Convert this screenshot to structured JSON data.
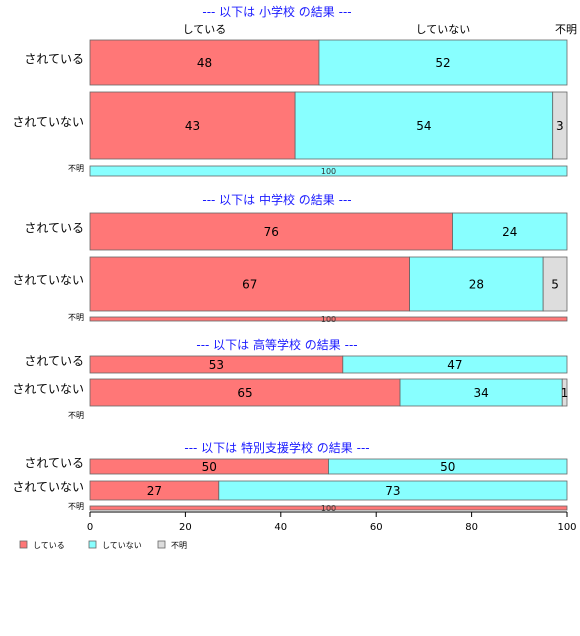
{
  "chart_data": {
    "type": "bar",
    "orientation": "horizontal-stacked-percent",
    "xlim": [
      0,
      100
    ],
    "xticks": [
      "0",
      "20",
      "40",
      "60",
      "80",
      "100"
    ],
    "legend": {
      "position": "bottom-left",
      "entries": [
        "している",
        "していない",
        "不明"
      ]
    },
    "column_headers": [
      "している",
      "していない",
      "不明"
    ],
    "colors": {
      "している": "#ff7777",
      "していない": "#88ffff",
      "不明": "#dddddd"
    },
    "panels": [
      {
        "title": "--- 以下は 小学校 の結果 ---",
        "rows": [
          {
            "label": "されている",
            "values": [
              48,
              52,
              0
            ],
            "labels": [
              "48",
              "52",
              ""
            ]
          },
          {
            "label": "されていない",
            "values": [
              43,
              54,
              3
            ],
            "labels": [
              "43",
              "54",
              "3"
            ]
          },
          {
            "label": "不明",
            "values": [
              0,
              100,
              0
            ],
            "labels": [
              "",
              "100",
              ""
            ]
          }
        ]
      },
      {
        "title": "--- 以下は 中学校 の結果 ---",
        "rows": [
          {
            "label": "されている",
            "values": [
              76,
              24,
              0
            ],
            "labels": [
              "76",
              "24",
              ""
            ]
          },
          {
            "label": "されていない",
            "values": [
              67,
              28,
              5
            ],
            "labels": [
              "67",
              "28",
              "5"
            ]
          },
          {
            "label": "不明",
            "values": [
              100,
              0,
              0
            ],
            "labels": [
              "100",
              "",
              ""
            ]
          }
        ]
      },
      {
        "title": "--- 以下は 高等学校 の結果 ---",
        "rows": [
          {
            "label": "されている",
            "values": [
              53,
              47,
              0
            ],
            "labels": [
              "53",
              "47",
              ""
            ]
          },
          {
            "label": "されていない",
            "values": [
              65,
              34,
              1
            ],
            "labels": [
              "65",
              "34",
              "1"
            ]
          },
          {
            "label": "不明",
            "values": [
              0,
              0,
              0
            ],
            "labels": [
              "",
              "",
              ""
            ]
          }
        ]
      },
      {
        "title": "--- 以下は 特別支援学校 の結果 ---",
        "rows": [
          {
            "label": "されている",
            "values": [
              50,
              50,
              0
            ],
            "labels": [
              "50",
              "50",
              ""
            ]
          },
          {
            "label": "されていない",
            "values": [
              27,
              73,
              0
            ],
            "labels": [
              "27",
              "73",
              ""
            ]
          },
          {
            "label": "不明",
            "values": [
              100,
              0,
              0
            ],
            "labels": [
              "100",
              "",
              ""
            ]
          }
        ]
      }
    ]
  }
}
